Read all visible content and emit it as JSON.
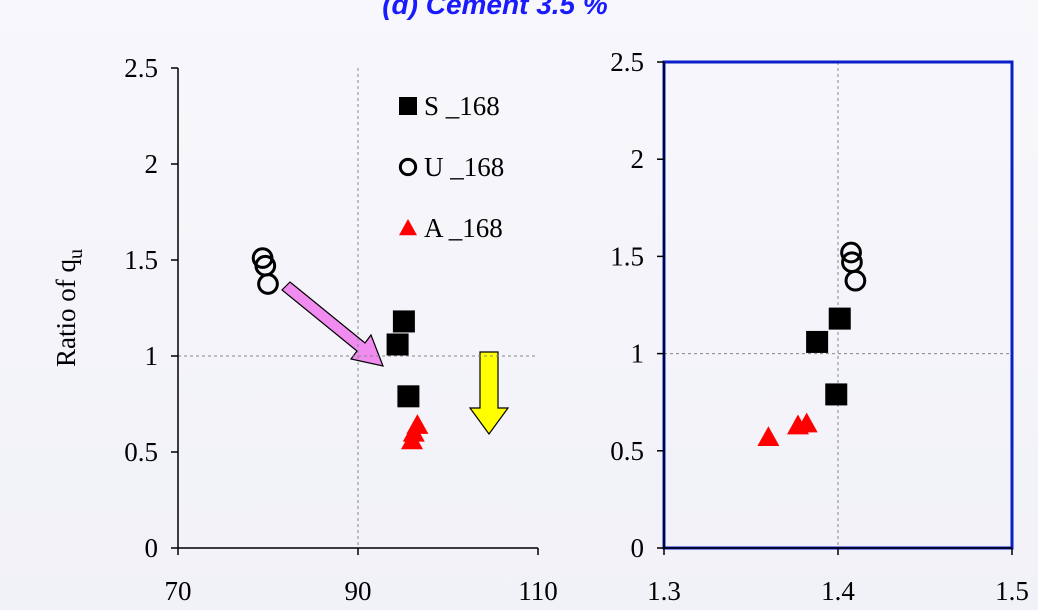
{
  "title": "(d) Cement 3.5 %",
  "chart_data": [
    {
      "type": "scatter",
      "ylabel": {
        "text": "Ratio of q",
        "sub": "u"
      },
      "xlim": [
        70,
        110
      ],
      "xticks": [
        70,
        90,
        110
      ],
      "ylim": [
        0,
        2.5
      ],
      "yticks": [
        0,
        0.5,
        1,
        1.5,
        2,
        2.5
      ],
      "refx": 90,
      "refy": 1,
      "legend": "upper right",
      "border": false,
      "series": [
        {
          "name": "S _168",
          "marker": "square",
          "color": "#000000",
          "x": [
            95.1,
            94.4,
            95.6
          ],
          "values": [
            1.18,
            1.06,
            0.79
          ]
        },
        {
          "name": "U _168",
          "marker": "circle-open",
          "color": "#000000",
          "x": [
            79.4,
            79.7,
            80.0
          ],
          "values": [
            1.51,
            1.47,
            1.375
          ]
        },
        {
          "name": "A _168",
          "marker": "triangle",
          "color": "#ff0000",
          "x": [
            96.6,
            96.2,
            96.0
          ],
          "values": [
            0.64,
            0.6,
            0.56
          ]
        }
      ]
    },
    {
      "type": "scatter",
      "xlim": [
        1.3,
        1.5
      ],
      "xticks": [
        1.3,
        1.4,
        1.5
      ],
      "ylim": [
        0,
        2.5
      ],
      "yticks": [
        0,
        0.5,
        1,
        1.5,
        2,
        2.5
      ],
      "refx": 1.4,
      "refy": 1,
      "border": true,
      "border_color": "#0a1ec8",
      "series": [
        {
          "marker": "square",
          "color": "#000000",
          "x": [
            1.401,
            1.388,
            1.399
          ],
          "values": [
            1.18,
            1.06,
            0.79
          ]
        },
        {
          "marker": "circle-open",
          "color": "#000000",
          "x": [
            1.4075,
            1.408,
            1.41
          ],
          "values": [
            1.52,
            1.47,
            1.375
          ]
        },
        {
          "marker": "triangle",
          "color": "#ff0000",
          "x": [
            1.36,
            1.377,
            1.382
          ],
          "values": [
            0.57,
            0.63,
            0.64
          ]
        }
      ]
    }
  ]
}
